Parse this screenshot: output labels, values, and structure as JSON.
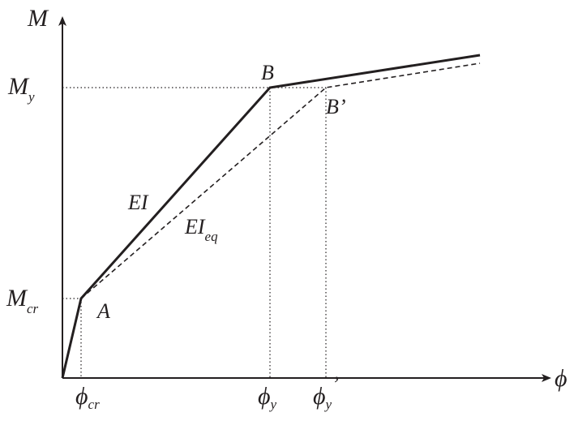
{
  "axes": {
    "y_label": "M",
    "x_label": "ϕ"
  },
  "y_labels": {
    "yield": {
      "base": "M",
      "sub": "y"
    },
    "cracking": {
      "base": "M",
      "sub": "cr"
    }
  },
  "x_labels": {
    "cracking": {
      "base": "ϕ",
      "sub": "cr"
    },
    "yield": {
      "base": "ϕ",
      "sub": "y"
    },
    "equivalent_yield": {
      "base": "ϕ",
      "sub": "y",
      "prime": "’"
    }
  },
  "points": {
    "A": "A",
    "B": "B",
    "B_prime": "B’"
  },
  "lines": {
    "EI": {
      "base": "EI"
    },
    "EI_eq": {
      "base": "EI",
      "sub": "eq"
    }
  }
}
